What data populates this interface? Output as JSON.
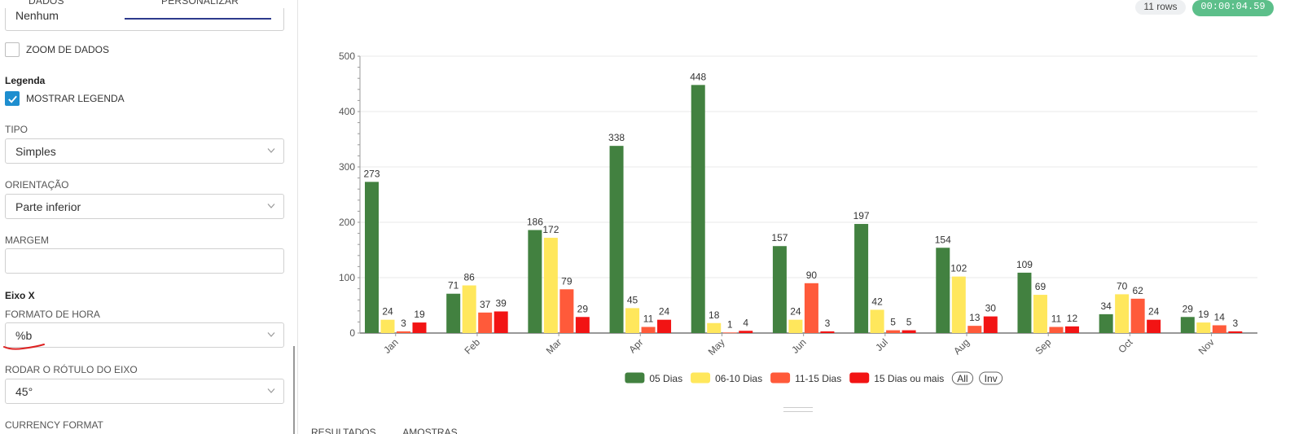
{
  "tabs": {
    "dados": "DADOS",
    "personalizar": "PERSONALIZAR"
  },
  "partial_select_value": "Nenhum",
  "zoom": {
    "label": "ZOOM DE DADOS",
    "checked": false
  },
  "legend_section": {
    "title": "Legenda",
    "show_label": "MOSTRAR LEGENDA",
    "show_checked": true
  },
  "tipo": {
    "label": "TIPO",
    "value": "Simples"
  },
  "orientacao": {
    "label": "ORIENTAÇÃO",
    "value": "Parte inferior"
  },
  "margem": {
    "label": "MARGEM",
    "value": ""
  },
  "eixo_x": {
    "title": "Eixo X"
  },
  "formato_hora": {
    "label": "FORMATO DE HORA",
    "value": "%b"
  },
  "rodar": {
    "label": "RODAR O RÓTULO DO EIXO",
    "value": "45°"
  },
  "currency": {
    "label": "CURRENCY FORMAT"
  },
  "header": {
    "rows": "11 rows",
    "timer": "00:00:04.59"
  },
  "bottom_tabs": [
    "RESULTADOS",
    "AMOSTRAS"
  ],
  "chart_data": {
    "type": "bar",
    "categories": [
      "Jan",
      "Feb",
      "Mar",
      "Apr",
      "May",
      "Jun",
      "Jul",
      "Aug",
      "Sep",
      "Oct",
      "Nov"
    ],
    "series": [
      {
        "name": "05 Dias",
        "color": "#428140",
        "values": [
          273,
          71,
          186,
          338,
          448,
          157,
          197,
          154,
          109,
          34,
          29
        ]
      },
      {
        "name": "06-10 Dias",
        "color": "#ffe75c",
        "values": [
          24,
          86,
          172,
          45,
          18,
          24,
          42,
          102,
          69,
          70,
          19
        ]
      },
      {
        "name": "11-15 Dias",
        "color": "#ff5a3a",
        "values": [
          3,
          37,
          79,
          11,
          1,
          90,
          5,
          13,
          11,
          62,
          14
        ]
      },
      {
        "name": "15 Dias ou mais",
        "color": "#f21414",
        "values": [
          19,
          39,
          29,
          24,
          4,
          3,
          5,
          30,
          12,
          24,
          3
        ]
      }
    ],
    "yticks": [
      0,
      100,
      200,
      300,
      400,
      500
    ],
    "ylim": [
      0,
      500
    ],
    "legend_position": "bottom",
    "legend_controls": [
      "All",
      "Inv"
    ],
    "x_label_rotation": 45
  }
}
